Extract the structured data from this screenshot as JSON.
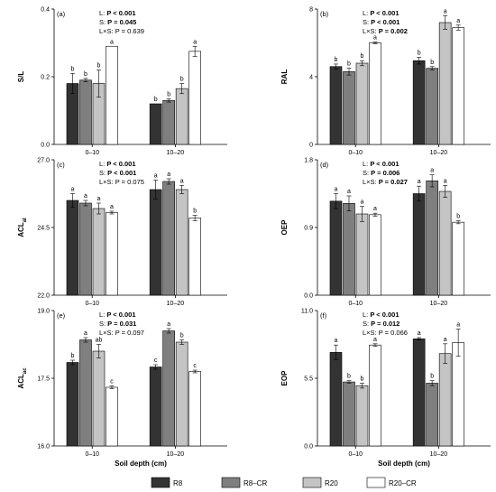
{
  "legend": {
    "items": [
      {
        "label": "R8",
        "color": "#333333"
      },
      {
        "label": "R8–CR",
        "color": "#7f7f7f"
      },
      {
        "label": "R20",
        "color": "#c4c4c4"
      },
      {
        "label": "R20–CR",
        "color": "#ffffff"
      }
    ]
  },
  "chart_data": [
    {
      "type": "bar",
      "panel": "(a)",
      "ylabel": "S/L",
      "ylabel_sub": "",
      "ylim": [
        0.0,
        0.4
      ],
      "yticks": [
        "0.0",
        "0.2",
        "0.4"
      ],
      "categories": [
        "0–10",
        "10–20"
      ],
      "xlabel": "",
      "stats": [
        {
          "pre": "L: ",
          "val": "P < 0.001",
          "bold": true
        },
        {
          "pre": "S: ",
          "val": "P = 0.045",
          "bold": true
        },
        {
          "pre": "L×S: ",
          "val": "P = 0.639",
          "bold": false
        }
      ],
      "series": [
        {
          "name": "R8",
          "values": [
            0.18,
            0.12
          ],
          "errors": [
            0.03,
            0.0
          ],
          "letters": [
            "b",
            "b"
          ]
        },
        {
          "name": "R8–CR",
          "values": [
            0.19,
            0.13
          ],
          "errors": [
            0.005,
            0.005
          ],
          "letters": [
            "b",
            "b"
          ]
        },
        {
          "name": "R20",
          "values": [
            0.18,
            0.165
          ],
          "errors": [
            0.04,
            0.015
          ],
          "letters": [
            "b",
            "b"
          ]
        },
        {
          "name": "R20–CR",
          "values": [
            0.29,
            0.275
          ],
          "errors": [
            0.0,
            0.015
          ],
          "letters": [
            "a",
            "a"
          ]
        }
      ]
    },
    {
      "type": "bar",
      "panel": "(b)",
      "ylabel": "RAL",
      "ylabel_sub": "",
      "ylim": [
        0,
        8
      ],
      "yticks": [
        "0",
        "4",
        "8"
      ],
      "categories": [
        "0–10",
        "10–20"
      ],
      "xlabel": "",
      "stats": [
        {
          "pre": "L: ",
          "val": "P < 0.001",
          "bold": true
        },
        {
          "pre": "S: ",
          "val": "P < 0.001",
          "bold": true
        },
        {
          "pre": "L×S: ",
          "val": "P = 0.002",
          "bold": true
        }
      ],
      "series": [
        {
          "name": "R8",
          "values": [
            4.6,
            4.95
          ],
          "errors": [
            0.15,
            0.2
          ],
          "letters": [
            "b",
            "b"
          ]
        },
        {
          "name": "R8–CR",
          "values": [
            4.3,
            4.5
          ],
          "errors": [
            0.2,
            0.1
          ],
          "letters": [
            "b",
            "b"
          ]
        },
        {
          "name": "R20",
          "values": [
            4.8,
            7.2
          ],
          "errors": [
            0.15,
            0.4
          ],
          "letters": [
            "b",
            "a"
          ]
        },
        {
          "name": "R20–CR",
          "values": [
            6.0,
            6.9
          ],
          "errors": [
            0.05,
            0.15
          ],
          "letters": [
            "a",
            "a"
          ]
        }
      ]
    },
    {
      "type": "bar",
      "panel": "(c)",
      "ylabel": "ACL",
      "ylabel_sub": "al",
      "ylim": [
        22.0,
        27.0
      ],
      "yticks": [
        "22.0",
        "24.5",
        "27.0"
      ],
      "categories": [
        "0–10",
        "10–20"
      ],
      "xlabel": "",
      "stats": [
        {
          "pre": "L: ",
          "val": "P < 0.001",
          "bold": true
        },
        {
          "pre": "S: ",
          "val": "P < 0.001",
          "bold": true
        },
        {
          "pre": "L×S: ",
          "val": "P = 0.075",
          "bold": false
        }
      ],
      "series": [
        {
          "name": "R8",
          "values": [
            25.5,
            25.9
          ],
          "errors": [
            0.25,
            0.35
          ],
          "letters": [
            "a",
            "a"
          ]
        },
        {
          "name": "R8–CR",
          "values": [
            25.4,
            26.2
          ],
          "errors": [
            0.1,
            0.1
          ],
          "letters": [
            "a",
            "a"
          ]
        },
        {
          "name": "R20",
          "values": [
            25.2,
            25.9
          ],
          "errors": [
            0.2,
            0.15
          ],
          "letters": [
            "a",
            "a"
          ]
        },
        {
          "name": "R20–CR",
          "values": [
            25.05,
            24.85
          ],
          "errors": [
            0.05,
            0.1
          ],
          "letters": [
            "a",
            "b"
          ]
        }
      ]
    },
    {
      "type": "bar",
      "panel": "(d)",
      "ylabel": "OEP",
      "ylabel_sub": "",
      "ylim": [
        0.0,
        1.8
      ],
      "yticks": [
        "0.0",
        "0.9",
        "1.8"
      ],
      "categories": [
        "0–10",
        "10–20"
      ],
      "xlabel": "",
      "stats": [
        {
          "pre": "L: ",
          "val": "P < 0.001",
          "bold": true
        },
        {
          "pre": "S: ",
          "val": "P = 0.006",
          "bold": true
        },
        {
          "pre": "L×S: ",
          "val": "P = 0.027",
          "bold": true
        }
      ],
      "series": [
        {
          "name": "R8",
          "values": [
            1.25,
            1.35
          ],
          "errors": [
            0.1,
            0.1
          ],
          "letters": [
            "a",
            "a"
          ]
        },
        {
          "name": "R8–CR",
          "values": [
            1.22,
            1.52
          ],
          "errors": [
            0.1,
            0.08
          ],
          "letters": [
            "a",
            "a"
          ]
        },
        {
          "name": "R20",
          "values": [
            1.08,
            1.38
          ],
          "errors": [
            0.1,
            0.08
          ],
          "letters": [
            "a",
            "a"
          ]
        },
        {
          "name": "R20–CR",
          "values": [
            1.07,
            0.97
          ],
          "errors": [
            0.02,
            0.02
          ],
          "letters": [
            "a",
            "b"
          ]
        }
      ]
    },
    {
      "type": "bar",
      "panel": "(e)",
      "ylabel": "ACL",
      "ylabel_sub": "ac",
      "ylim": [
        16.0,
        19.0
      ],
      "yticks": [
        "16.0",
        "17.5",
        "19.0"
      ],
      "categories": [
        "0–10",
        "10–20"
      ],
      "xlabel": "Soil depth (cm)",
      "stats": [
        {
          "pre": "L: ",
          "val": "P < 0.001",
          "bold": true
        },
        {
          "pre": "S: ",
          "val": "P = 0.031",
          "bold": true
        },
        {
          "pre": "L×S: ",
          "val": "P = 0.097",
          "bold": false
        }
      ],
      "series": [
        {
          "name": "R8",
          "values": [
            17.85,
            17.75
          ],
          "errors": [
            0.05,
            0.05
          ],
          "letters": [
            "b",
            "c"
          ]
        },
        {
          "name": "R8–CR",
          "values": [
            18.35,
            18.55
          ],
          "errors": [
            0.05,
            0.05
          ],
          "letters": [
            "a",
            "a"
          ]
        },
        {
          "name": "R20",
          "values": [
            18.1,
            18.3
          ],
          "errors": [
            0.15,
            0.05
          ],
          "letters": [
            "ab",
            "b"
          ]
        },
        {
          "name": "R20–CR",
          "values": [
            17.3,
            17.65
          ],
          "errors": [
            0.03,
            0.03
          ],
          "letters": [
            "c",
            "c"
          ]
        }
      ]
    },
    {
      "type": "bar",
      "panel": "(f)",
      "ylabel": "EOP",
      "ylabel_sub": "",
      "ylim": [
        0.0,
        11.0
      ],
      "yticks": [
        "0.0",
        "5.5",
        "11.0"
      ],
      "categories": [
        "0–10",
        "10–20"
      ],
      "xlabel": "Soil depth (cm)",
      "stats": [
        {
          "pre": "L: ",
          "val": "P < 0.001",
          "bold": true
        },
        {
          "pre": "S: ",
          "val": "P = 0.012",
          "bold": true
        },
        {
          "pre": "L×S: ",
          "val": "P = 0.066",
          "bold": false
        }
      ],
      "series": [
        {
          "name": "R8",
          "values": [
            7.6,
            8.7
          ],
          "errors": [
            0.6,
            0.1
          ],
          "letters": [
            "a",
            "a"
          ]
        },
        {
          "name": "R8–CR",
          "values": [
            5.2,
            5.1
          ],
          "errors": [
            0.1,
            0.2
          ],
          "letters": [
            "b",
            "b"
          ]
        },
        {
          "name": "R20",
          "values": [
            4.9,
            7.5
          ],
          "errors": [
            0.2,
            0.8
          ],
          "letters": [
            "b",
            "a"
          ]
        },
        {
          "name": "R20–CR",
          "values": [
            8.2,
            8.4
          ],
          "errors": [
            0.1,
            1.1
          ],
          "letters": [
            "a",
            "a"
          ]
        }
      ]
    }
  ]
}
